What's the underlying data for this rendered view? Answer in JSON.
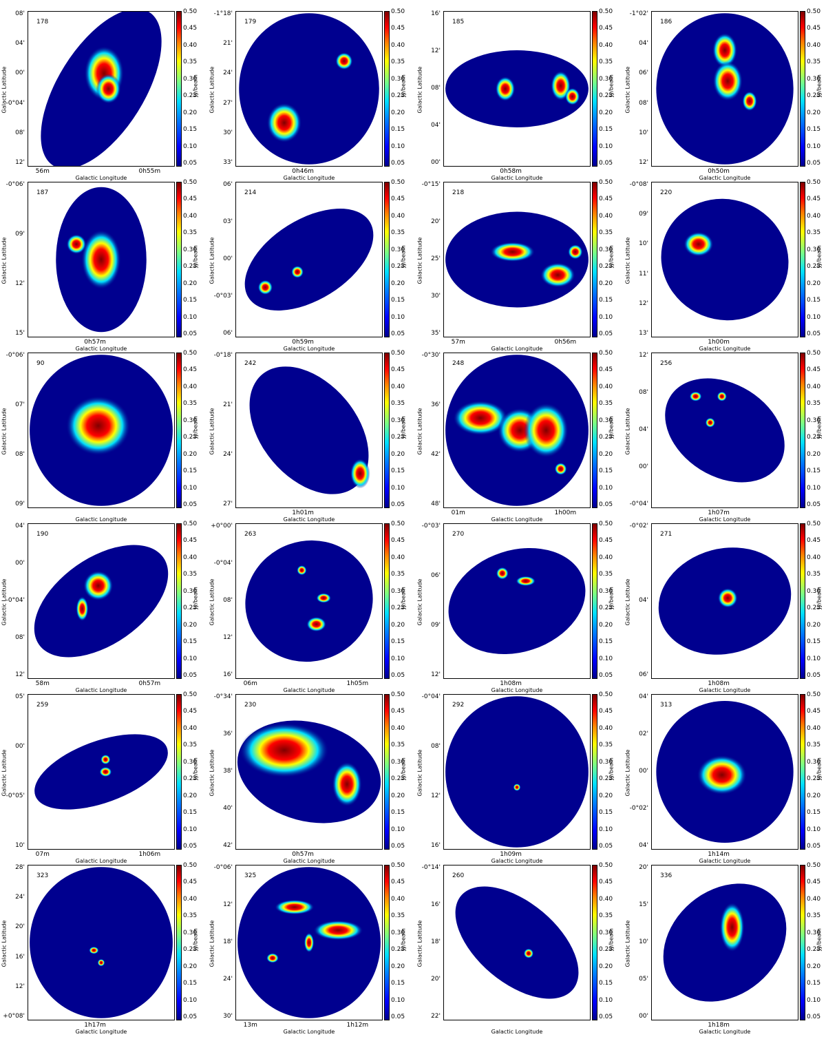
{
  "axis_labels": {
    "x": "Galactic Longitude",
    "y": "Galactic Latitude",
    "colorbar": "Jy/beam"
  },
  "colorbar_ticks": [
    "0.50",
    "0.45",
    "0.40",
    "0.35",
    "0.30",
    "0.25",
    "0.20",
    "0.15",
    "0.10",
    "0.05"
  ],
  "colors": {
    "background_map": "#00008f",
    "mid": "#00e0ff",
    "high": "#ffff00",
    "peak": "#800000"
  },
  "panels": [
    {
      "id": "178",
      "yticks": [
        "08'",
        "04'",
        "00'",
        "-0°04'",
        "08'",
        "12'"
      ],
      "xticks": [
        "56m",
        "0h55m"
      ],
      "shape": "ellipse",
      "angle": -58,
      "rx": 0.62,
      "ry": 0.28
    },
    {
      "id": "179",
      "yticks": [
        "-1°18'",
        "21'",
        "24'",
        "27'",
        "30'",
        "33'"
      ],
      "xticks": [
        "0h46m"
      ],
      "shape": "ellipse",
      "angle": 0,
      "rx": 0.48,
      "ry": 0.49
    },
    {
      "id": "185",
      "yticks": [
        "16'",
        "12'",
        "08'",
        "04'",
        "00'"
      ],
      "xticks": [
        "0h58m"
      ],
      "shape": "ellipse",
      "angle": 0,
      "rx": 0.49,
      "ry": 0.25
    },
    {
      "id": "186",
      "yticks": [
        "-1°02'",
        "04'",
        "06'",
        "08'",
        "10'",
        "12'"
      ],
      "xticks": [
        "0h50m"
      ],
      "shape": "ellipse",
      "angle": 0,
      "rx": 0.47,
      "ry": 0.49
    },
    {
      "id": "187",
      "yticks": [
        "-0°06'",
        "09'",
        "12'",
        "15'"
      ],
      "xticks": [
        "0h57m"
      ],
      "shape": "ellipse",
      "angle": 0,
      "rx": 0.31,
      "ry": 0.47
    },
    {
      "id": "214",
      "yticks": [
        "06'",
        "03'",
        "00'",
        "-0°03'",
        "06'"
      ],
      "xticks": [
        "0h59m"
      ],
      "shape": "ellipse",
      "angle": -32,
      "rx": 0.49,
      "ry": 0.26
    },
    {
      "id": "218",
      "yticks": [
        "-0°15'",
        "20'",
        "25'",
        "30'",
        "35'"
      ],
      "xticks": [
        "57m",
        "0h56m"
      ],
      "shape": "ellipse",
      "angle": 0,
      "rx": 0.49,
      "ry": 0.31
    },
    {
      "id": "220",
      "yticks": [
        "-0°08'",
        "09'",
        "10'",
        "11'",
        "12'",
        "13'"
      ],
      "xticks": [
        "1h00m"
      ],
      "shape": "ellipse",
      "angle": 22,
      "rx": 0.44,
      "ry": 0.39
    },
    {
      "id": "90",
      "yticks": [
        "-0°06'",
        "07'",
        "08'",
        "09'"
      ],
      "xticks": [],
      "shape": "ellipse",
      "angle": 0,
      "rx": 0.49,
      "ry": 0.49
    },
    {
      "id": "242",
      "yticks": [
        "-0°18'",
        "21'",
        "24'",
        "27'"
      ],
      "xticks": [
        "1h01m"
      ],
      "shape": "ellipse",
      "angle": 50,
      "rx": 0.5,
      "ry": 0.31
    },
    {
      "id": "248",
      "yticks": [
        "-0°30'",
        "36'",
        "42'",
        "48'"
      ],
      "xticks": [
        "01m",
        "1h00m"
      ],
      "shape": "ellipse",
      "angle": 0,
      "rx": 0.49,
      "ry": 0.49
    },
    {
      "id": "256",
      "yticks": [
        "12'",
        "08'",
        "04'",
        "00'",
        "-0°04'"
      ],
      "xticks": [
        "1h07m"
      ],
      "shape": "ellipse",
      "angle": 32,
      "rx": 0.44,
      "ry": 0.3
    },
    {
      "id": "190",
      "yticks": [
        "04'",
        "00'",
        "-0°04'",
        "08'",
        "12'"
      ],
      "xticks": [
        "58m",
        "0h57m"
      ],
      "shape": "ellipse",
      "angle": -35,
      "rx": 0.52,
      "ry": 0.28
    },
    {
      "id": "263",
      "yticks": [
        "+0°00'",
        "-0°04'",
        "08'",
        "12'",
        "16'"
      ],
      "xticks": [
        "06m",
        "1h05m"
      ],
      "shape": "ellipse",
      "angle": -20,
      "rx": 0.44,
      "ry": 0.39
    },
    {
      "id": "270",
      "yticks": [
        "-0°03'",
        "06'",
        "09'",
        "12'"
      ],
      "xticks": [
        "1h08m"
      ],
      "shape": "ellipse",
      "angle": -18,
      "rx": 0.48,
      "ry": 0.33
    },
    {
      "id": "271",
      "yticks": [
        "-0°02'",
        "04'",
        "06'"
      ],
      "xticks": [
        "1h08m"
      ],
      "shape": "ellipse",
      "angle": -15,
      "rx": 0.46,
      "ry": 0.34
    },
    {
      "id": "259",
      "yticks": [
        "05'",
        "00'",
        "-0°05'",
        "10'"
      ],
      "xticks": [
        "07m",
        "1h06m"
      ],
      "shape": "ellipse",
      "angle": -20,
      "rx": 0.48,
      "ry": 0.2
    },
    {
      "id": "230",
      "yticks": [
        "-0°34'",
        "36'",
        "38'",
        "40'",
        "42'"
      ],
      "xticks": [
        "0h57m"
      ],
      "shape": "ellipse",
      "angle": 15,
      "rx": 0.5,
      "ry": 0.32
    },
    {
      "id": "292",
      "yticks": [
        "-0°04'",
        "08'",
        "12'",
        "16'"
      ],
      "xticks": [
        "1h09m"
      ],
      "shape": "ellipse",
      "angle": 0,
      "rx": 0.49,
      "ry": 0.49
    },
    {
      "id": "313",
      "yticks": [
        "04'",
        "02'",
        "00'",
        "-0°02'",
        "04'"
      ],
      "xticks": [
        "1h14m"
      ],
      "shape": "ellipse",
      "angle": 0,
      "rx": 0.47,
      "ry": 0.46
    },
    {
      "id": "323",
      "yticks": [
        "28'",
        "24'",
        "20'",
        "16'",
        "12'",
        "+0°08'"
      ],
      "xticks": [
        "1h17m"
      ],
      "shape": "ellipse",
      "angle": 0,
      "rx": 0.49,
      "ry": 0.49
    },
    {
      "id": "325",
      "yticks": [
        "-0°06'",
        "12'",
        "18'",
        "24'",
        "30'"
      ],
      "xticks": [
        "13m",
        "1h12m"
      ],
      "shape": "ellipse",
      "angle": 0,
      "rx": 0.49,
      "ry": 0.49
    },
    {
      "id": "260",
      "yticks": [
        "-0°14'",
        "16'",
        "18'",
        "20'",
        "22'"
      ],
      "xticks": [],
      "shape": "ellipse",
      "angle": 40,
      "rx": 0.5,
      "ry": 0.26
    },
    {
      "id": "336",
      "yticks": [
        "20'",
        "15'",
        "10'",
        "05'",
        "00'"
      ],
      "xticks": [
        "1h18m"
      ],
      "shape": "ellipse",
      "angle": -40,
      "rx": 0.46,
      "ry": 0.34
    }
  ]
}
